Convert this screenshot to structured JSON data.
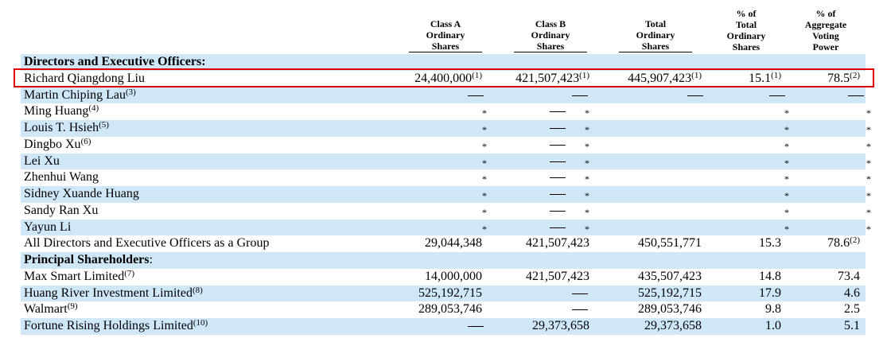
{
  "columns": [
    {
      "key": "class_a",
      "label": "Class A\nOrdinary\nShares"
    },
    {
      "key": "class_b",
      "label": "Class B\nOrdinary\nShares"
    },
    {
      "key": "total",
      "label": "Total\nOrdinary\nShares"
    },
    {
      "key": "pct_total",
      "label": "% of\nTotal\nOrdinary\nShares"
    },
    {
      "key": "pct_voting",
      "label": "% of\nAggregate\nVoting\nPower"
    }
  ],
  "rows": [
    {
      "type": "section",
      "name": "Directors and Executive Officers:",
      "shaded": true
    },
    {
      "type": "data",
      "name": "Richard Qiangdong Liu",
      "shaded": false,
      "class_a": "24,400,000",
      "class_a_sup": "(1)",
      "class_b": "421,507,423",
      "class_b_sup": "(1)",
      "total": "445,907,423",
      "total_sup": "(1)",
      "pct_total": "15.1",
      "pct_total_sup": "(1)",
      "pct_voting": "78.5",
      "pct_voting_sup": "(2)"
    },
    {
      "type": "data",
      "name": "Martin Chiping Lau",
      "name_sup": "(3)",
      "shaded": true,
      "class_a": "—",
      "class_b": "—",
      "total": "—",
      "pct_total": "—",
      "pct_voting": "—"
    },
    {
      "type": "data",
      "name": "Ming Huang",
      "name_sup": "(4)",
      "shaded": false,
      "class_a": "*",
      "class_b": "— *",
      "pct_total": "*",
      "pct_voting": "*"
    },
    {
      "type": "data",
      "name": "Louis T. Hsieh",
      "name_sup": "(5)",
      "shaded": true,
      "class_a": "*",
      "class_b": "— *",
      "pct_total": "*",
      "pct_voting": "*"
    },
    {
      "type": "data",
      "name": "Dingbo Xu",
      "name_sup": "(6)",
      "shaded": false,
      "class_a": "*",
      "class_b": "— *",
      "pct_total": "*",
      "pct_voting": "*"
    },
    {
      "type": "data",
      "name": "Lei Xu",
      "shaded": true,
      "class_a": "*",
      "class_b": "— *",
      "pct_total": "*",
      "pct_voting": "*"
    },
    {
      "type": "data",
      "name": "Zhenhui Wang",
      "shaded": false,
      "class_a": "*",
      "class_b": "— *",
      "pct_total": "*",
      "pct_voting": "*"
    },
    {
      "type": "data",
      "name": "Sidney Xuande Huang",
      "shaded": true,
      "class_a": "*",
      "class_b": "— *",
      "pct_total": "*",
      "pct_voting": "*"
    },
    {
      "type": "data",
      "name": "Sandy Ran Xu",
      "shaded": false,
      "class_a": "*",
      "class_b": "— *",
      "pct_total": "*",
      "pct_voting": "*"
    },
    {
      "type": "data",
      "name": "Yayun Li",
      "shaded": true,
      "class_a": "*",
      "class_b": "— *",
      "pct_total": "*",
      "pct_voting": "*"
    },
    {
      "type": "data",
      "name": "All Directors and Executive Officers as a Group",
      "shaded": false,
      "class_a": "29,044,348",
      "class_b": "421,507,423",
      "total": "450,551,771",
      "pct_total": "15.3",
      "pct_voting": "78.6",
      "pct_voting_sup": "(2)"
    },
    {
      "type": "section",
      "name": "Principal Shareholders",
      "name_suffix": ":",
      "shaded": true
    },
    {
      "type": "data",
      "name": "Max Smart Limited",
      "name_sup": "(7)",
      "shaded": false,
      "class_a": "14,000,000",
      "class_b": "421,507,423",
      "total": "435,507,423",
      "pct_total": "14.8",
      "pct_voting": "73.4"
    },
    {
      "type": "data",
      "name": "Huang River Investment Limited",
      "name_sup": "(8)",
      "shaded": true,
      "class_a": "525,192,715",
      "class_b": "—",
      "total": "525,192,715",
      "pct_total": "17.9",
      "pct_voting": "4.6"
    },
    {
      "type": "data",
      "name": "Walmart",
      "name_sup": "(9)",
      "shaded": false,
      "class_a": "289,053,746",
      "class_b": "—",
      "total": "289,053,746",
      "pct_total": "9.8",
      "pct_voting": "2.5"
    },
    {
      "type": "data",
      "name": "Fortune Rising Holdings Limited",
      "name_sup": "(10)",
      "shaded": true,
      "class_a": "—",
      "class_b": "29,373,658",
      "total": "29,373,658",
      "pct_total": "1.0",
      "pct_voting": "5.1"
    }
  ],
  "colors": {
    "row_shade": "#cfe7f7",
    "highlight_border": "#e00000"
  }
}
